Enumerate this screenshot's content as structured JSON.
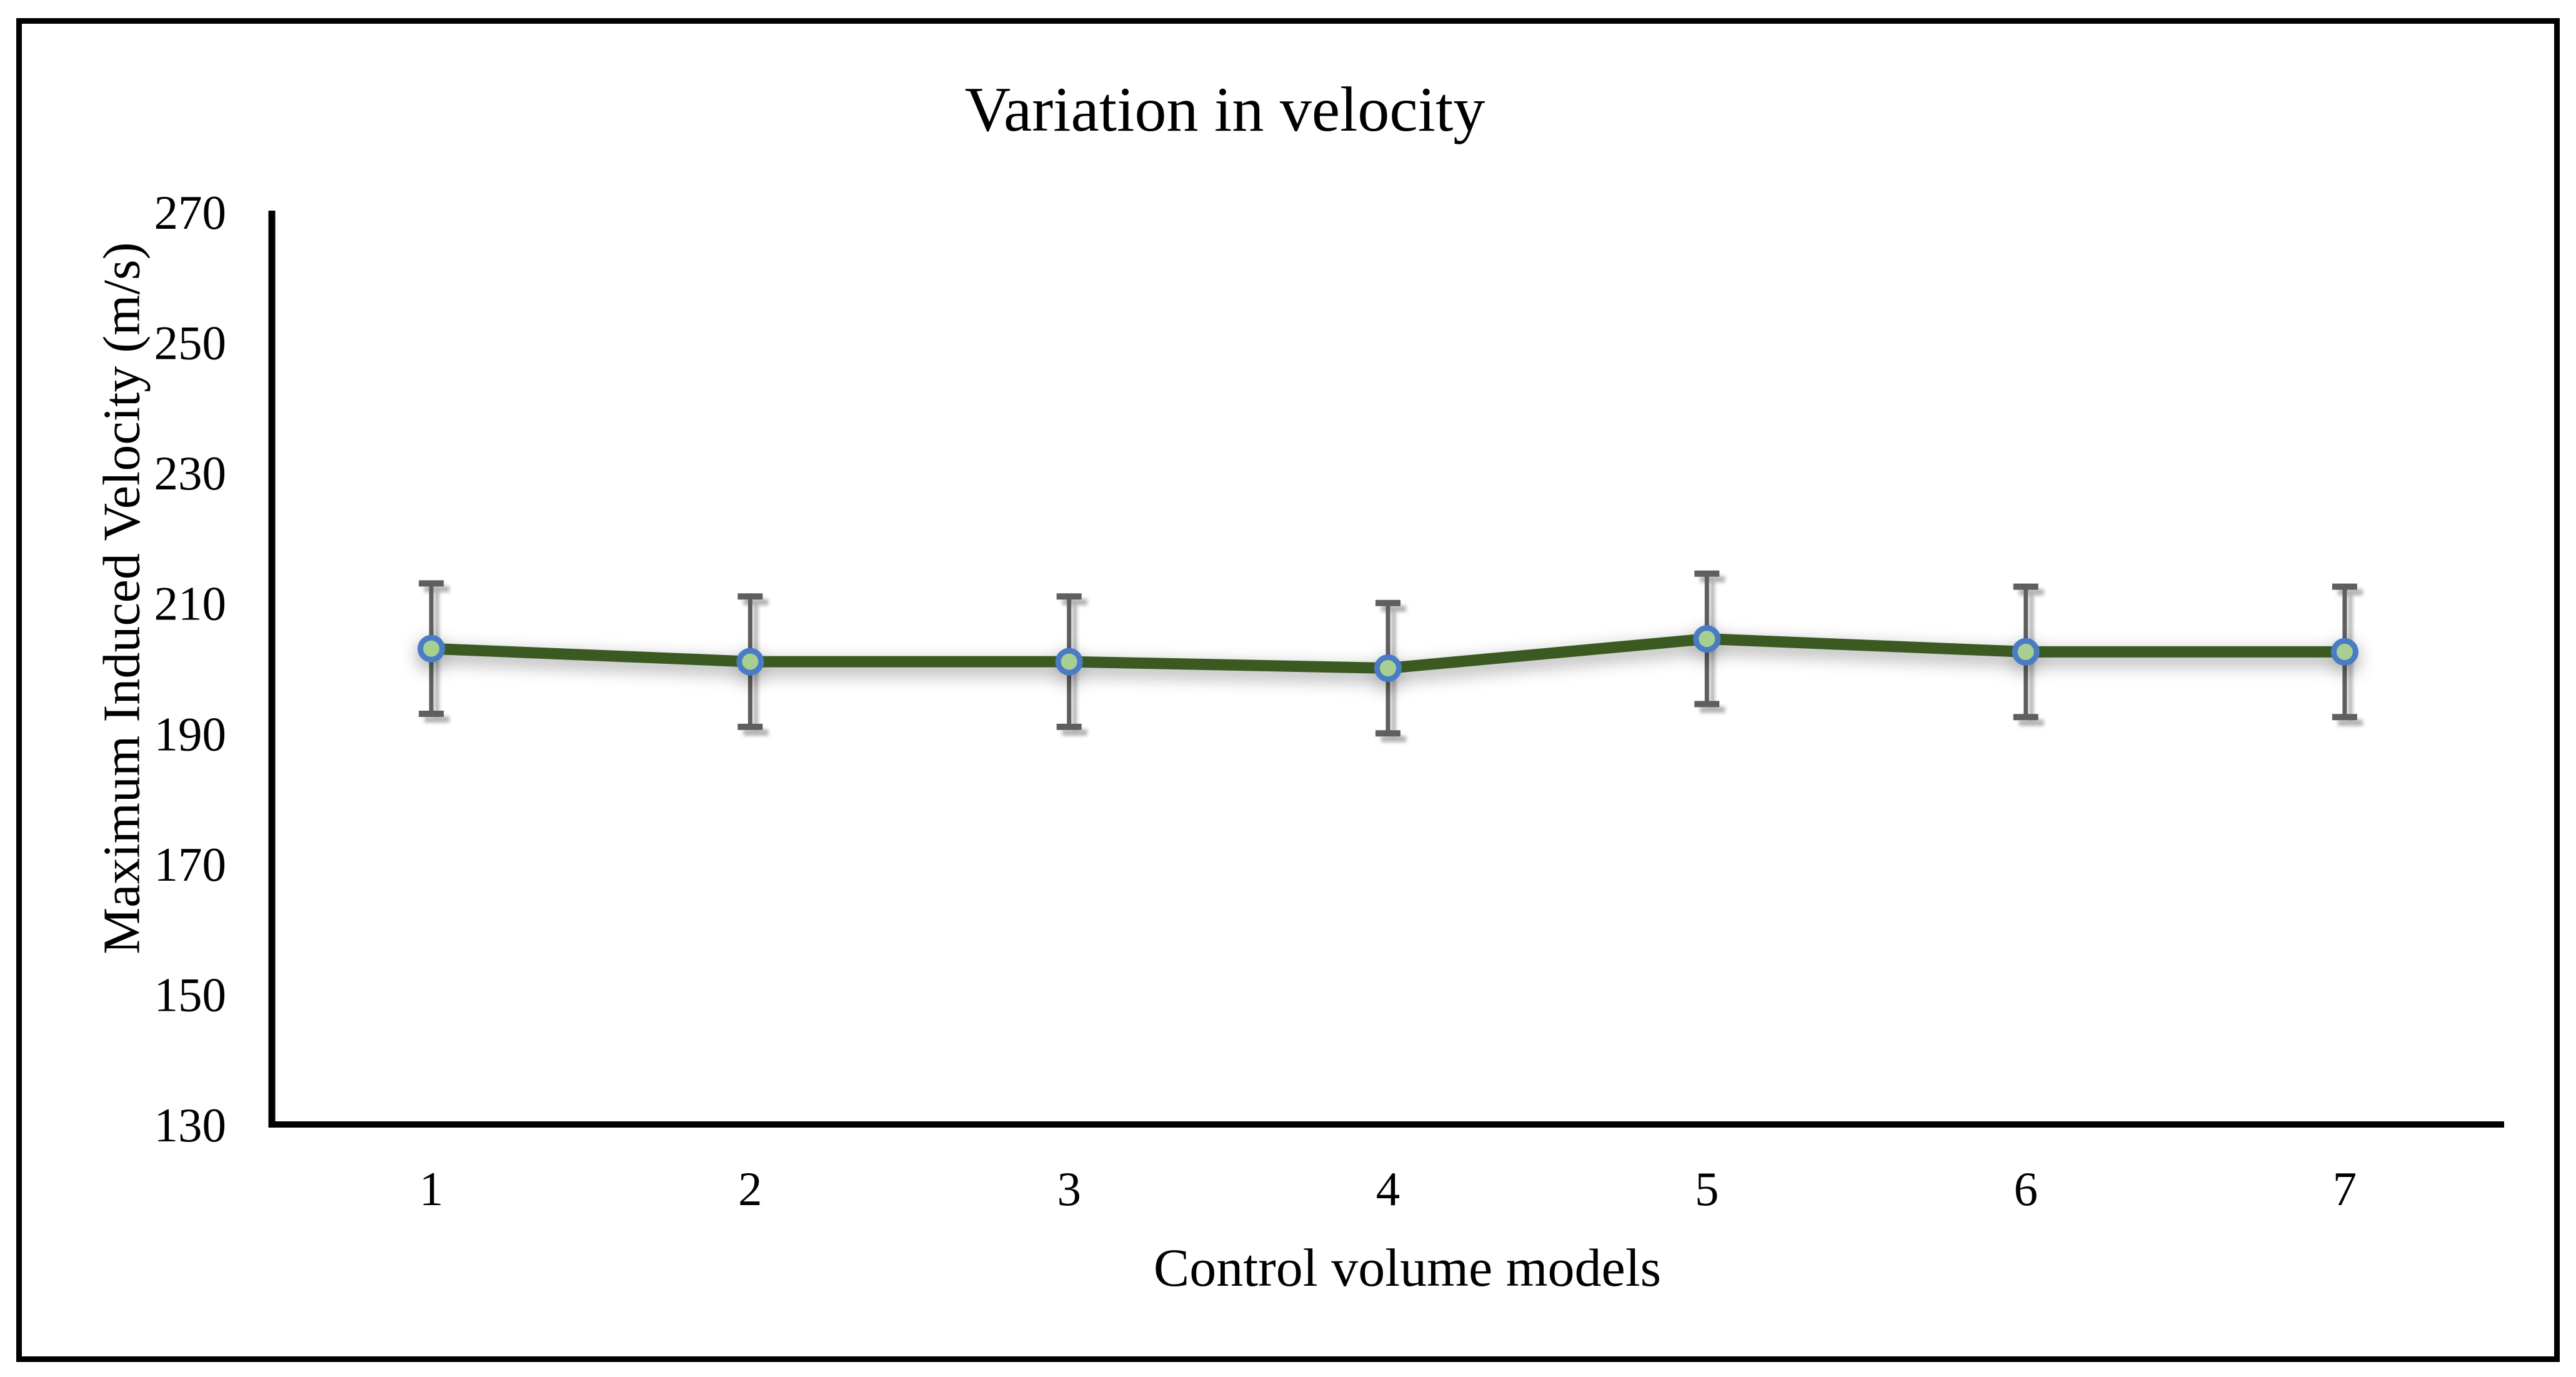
{
  "figure": {
    "background": "#ffffff",
    "border_color": "#000000"
  },
  "chart_data": {
    "type": "line",
    "title": "Variation in velocity",
    "xlabel": "Control volume models",
    "ylabel": "Maximum Induced Velocity (m/s)",
    "categories": [
      "1",
      "2",
      "3",
      "4",
      "5",
      "6",
      "7"
    ],
    "series": [
      {
        "values": [
          203,
          201,
          201,
          200,
          204.5,
          202.5,
          202.5
        ],
        "error_bars": [
          10,
          10,
          10,
          10,
          10,
          10,
          10
        ]
      }
    ],
    "ylim": [
      130,
      270
    ],
    "yticks": [
      130,
      150,
      170,
      190,
      210,
      230,
      250,
      270
    ],
    "grid": false,
    "legend": "none",
    "colors": {
      "line": "#3b5a23",
      "marker_fill": "#a7cf92",
      "marker_stroke": "#4a7cc4",
      "error_bar": "#5f5f5f",
      "axis": "#000000",
      "text": "#000000",
      "background": "#ffffff"
    }
  }
}
